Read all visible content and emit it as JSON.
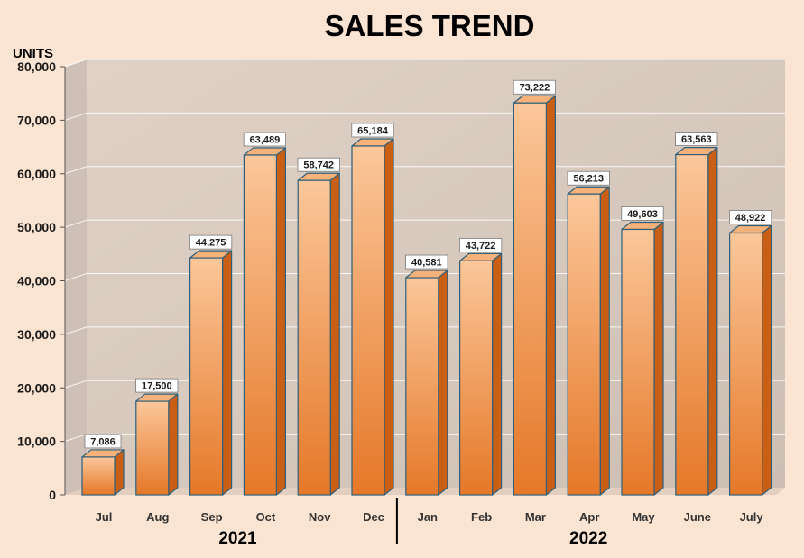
{
  "chart_data": {
    "type": "bar",
    "title": "SALES TREND",
    "ylabel": "UNITS",
    "xlabel": "",
    "ylim": [
      0,
      80000
    ],
    "yticks": [
      0,
      10000,
      20000,
      30000,
      40000,
      50000,
      60000,
      70000,
      80000
    ],
    "ytick_labels": [
      "0",
      "10,000",
      "20,000",
      "30,000",
      "40,000",
      "50,000",
      "60,000",
      "70,000",
      "80,000"
    ],
    "categories": [
      "Jul",
      "Aug",
      "Sep",
      "Oct",
      "Nov",
      "Dec",
      "Jan",
      "Feb",
      "Mar",
      "Apr",
      "May",
      "June",
      "July"
    ],
    "values": [
      7086,
      17500,
      44275,
      63489,
      58742,
      65184,
      40581,
      43722,
      73222,
      56213,
      49603,
      63563,
      48922
    ],
    "data_labels": [
      "7,086",
      "17,500",
      "44,275",
      "63,489",
      "58,742",
      "65,184",
      "40,581",
      "43,722",
      "73,222",
      "56,213",
      "49,603",
      "63,563",
      "48,922"
    ],
    "groups": [
      {
        "label": "2021",
        "categories": [
          "Jul",
          "Aug",
          "Sep",
          "Oct",
          "Nov",
          "Dec"
        ]
      },
      {
        "label": "2022",
        "categories": [
          "Jan",
          "Feb",
          "Mar",
          "Apr",
          "May",
          "June",
          "July"
        ]
      }
    ],
    "grid": true,
    "legend": "none",
    "colors": {
      "bar_front_light": "#fbc79a",
      "bar_front_dark": "#e57828",
      "bar_side": "#c95f15",
      "bar_top": "#f6b27a",
      "bar_outline": "#2f5f7a",
      "label_box": "#ffffff",
      "background": "#fbe4d2",
      "wall": "#b7b0aa"
    }
  }
}
